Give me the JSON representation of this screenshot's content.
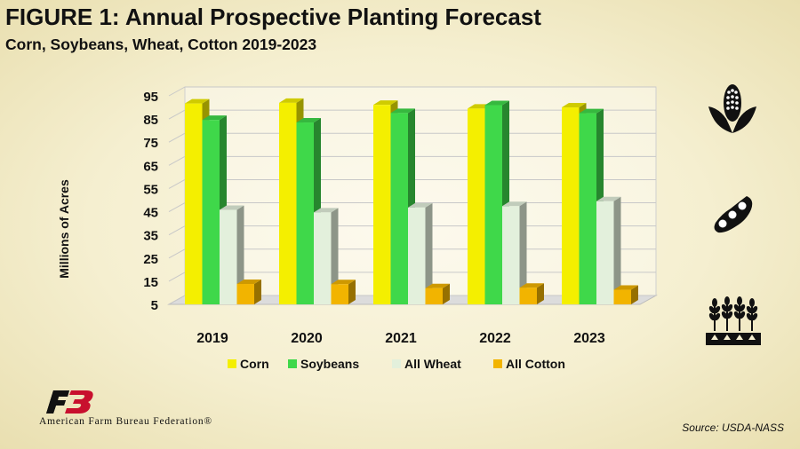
{
  "header": {
    "title": "FIGURE  1: Annual Prospective Planting Forecast",
    "subtitle": "Corn, Soybeans, Wheat, Cotton 2019-2023"
  },
  "footer": {
    "org": "American Farm Bureau Federation®",
    "source": "Source: USDA-NASS"
  },
  "icons": [
    "corn-icon",
    "soybean-icon",
    "wheat-icon",
    "farm-bureau-logo-icon"
  ],
  "chart_data": {
    "type": "bar",
    "title": "",
    "ylabel": "Millions of Acres",
    "xlabel": "",
    "ylim": [
      5,
      95
    ],
    "yticks": [
      5,
      15,
      25,
      35,
      45,
      55,
      65,
      75,
      85,
      95
    ],
    "categories": [
      "2019",
      "2020",
      "2021",
      "2022",
      "2023"
    ],
    "legend_position": "bottom",
    "grid": true,
    "series": [
      {
        "name": "Corn",
        "color": "#f4ef00",
        "values": [
          91.7,
          92.0,
          91.1,
          89.5,
          90.0
        ]
      },
      {
        "name": "Soybeans",
        "color": "#3fd84a",
        "values": [
          84.6,
          83.5,
          87.6,
          91.0,
          87.5
        ]
      },
      {
        "name": "All Wheat",
        "color": "#e3f0dc",
        "values": [
          45.8,
          44.7,
          46.8,
          47.4,
          49.5
        ]
      },
      {
        "name": "All Cotton",
        "color": "#f2b400",
        "values": [
          13.8,
          13.7,
          12.0,
          12.2,
          11.3
        ]
      }
    ]
  }
}
